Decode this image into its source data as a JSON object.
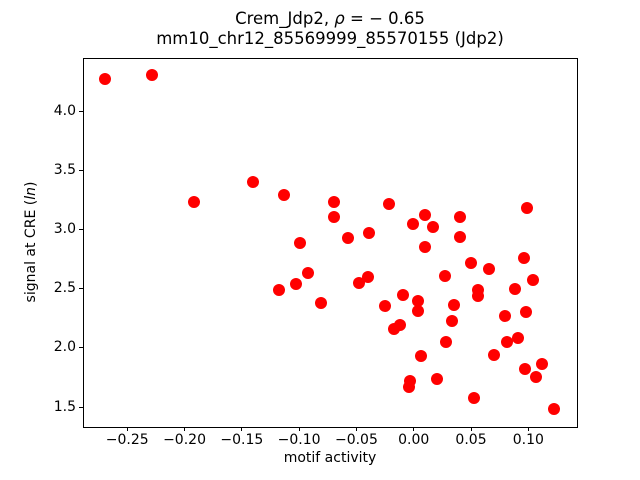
{
  "chart_data": {
    "type": "scatter",
    "title": {
      "prefix": "Crem_Jdp2, ",
      "rho": "ρ",
      "suffix": " = − 0.65",
      "line2": "mm10_chr12_85569999_85570155 (Jdp2)"
    },
    "xlabel": "motif activity",
    "ylabel": {
      "prefix": "signal at CRE (",
      "italic": "ln",
      "suffix": ")"
    },
    "marker_color": "#ff0000",
    "axes": {
      "xlim": [
        -0.2886,
        0.1416
      ],
      "ylim": [
        1.34,
        4.45
      ],
      "grid": false,
      "legend": "none",
      "spine_color": "#000000"
    },
    "x_ticks": {
      "values": [
        -0.25,
        -0.2,
        -0.15,
        -0.1,
        -0.05,
        0.0,
        0.05,
        0.1
      ],
      "labels": [
        "−0.25",
        "−0.20",
        "−0.15",
        "−0.10",
        "−0.05",
        "0.00",
        "0.05",
        "0.10"
      ]
    },
    "y_ticks": {
      "values": [
        1.5,
        2.0,
        2.5,
        3.0,
        3.5,
        4.0
      ],
      "labels": [
        "1.5",
        "2.0",
        "2.5",
        "3.0",
        "3.5",
        "4.0"
      ]
    },
    "points": [
      [
        -0.269,
        4.27
      ],
      [
        -0.228,
        4.31
      ],
      [
        -0.192,
        3.23
      ],
      [
        -0.14,
        3.4
      ],
      [
        -0.113,
        3.29
      ],
      [
        -0.07,
        3.23
      ],
      [
        -0.07,
        3.11
      ],
      [
        -0.022,
        3.22
      ],
      [
        0.01,
        3.12
      ],
      [
        -0.001,
        3.05
      ],
      [
        0.017,
        3.02
      ],
      [
        0.04,
        3.11
      ],
      [
        0.04,
        2.94
      ],
      [
        -0.057,
        2.93
      ],
      [
        -0.039,
        2.97
      ],
      [
        0.099,
        3.18
      ],
      [
        -0.099,
        2.89
      ],
      [
        -0.092,
        2.63
      ],
      [
        -0.103,
        2.54
      ],
      [
        -0.118,
        2.49
      ],
      [
        -0.081,
        2.38
      ],
      [
        0.01,
        2.85
      ],
      [
        0.05,
        2.72
      ],
      [
        0.066,
        2.67
      ],
      [
        0.096,
        2.76
      ],
      [
        -0.048,
        2.55
      ],
      [
        -0.04,
        2.6
      ],
      [
        0.027,
        2.61
      ],
      [
        0.056,
        2.49
      ],
      [
        0.056,
        2.44
      ],
      [
        0.088,
        2.5
      ],
      [
        0.104,
        2.57
      ],
      [
        -0.025,
        2.35
      ],
      [
        -0.009,
        2.45
      ],
      [
        0.004,
        2.4
      ],
      [
        0.004,
        2.31
      ],
      [
        0.035,
        2.36
      ],
      [
        0.08,
        2.27
      ],
      [
        0.098,
        2.3
      ],
      [
        0.033,
        2.23
      ],
      [
        -0.017,
        2.16
      ],
      [
        -0.012,
        2.19
      ],
      [
        0.028,
        2.05
      ],
      [
        0.081,
        2.05
      ],
      [
        0.091,
        2.08
      ],
      [
        0.07,
        1.94
      ],
      [
        0.006,
        1.93
      ],
      [
        0.097,
        1.82
      ],
      [
        0.112,
        1.86
      ],
      [
        0.107,
        1.75
      ],
      [
        -0.003,
        1.72
      ],
      [
        -0.004,
        1.67
      ],
      [
        0.02,
        1.74
      ],
      [
        0.053,
        1.58
      ],
      [
        0.122,
        1.48
      ]
    ]
  }
}
